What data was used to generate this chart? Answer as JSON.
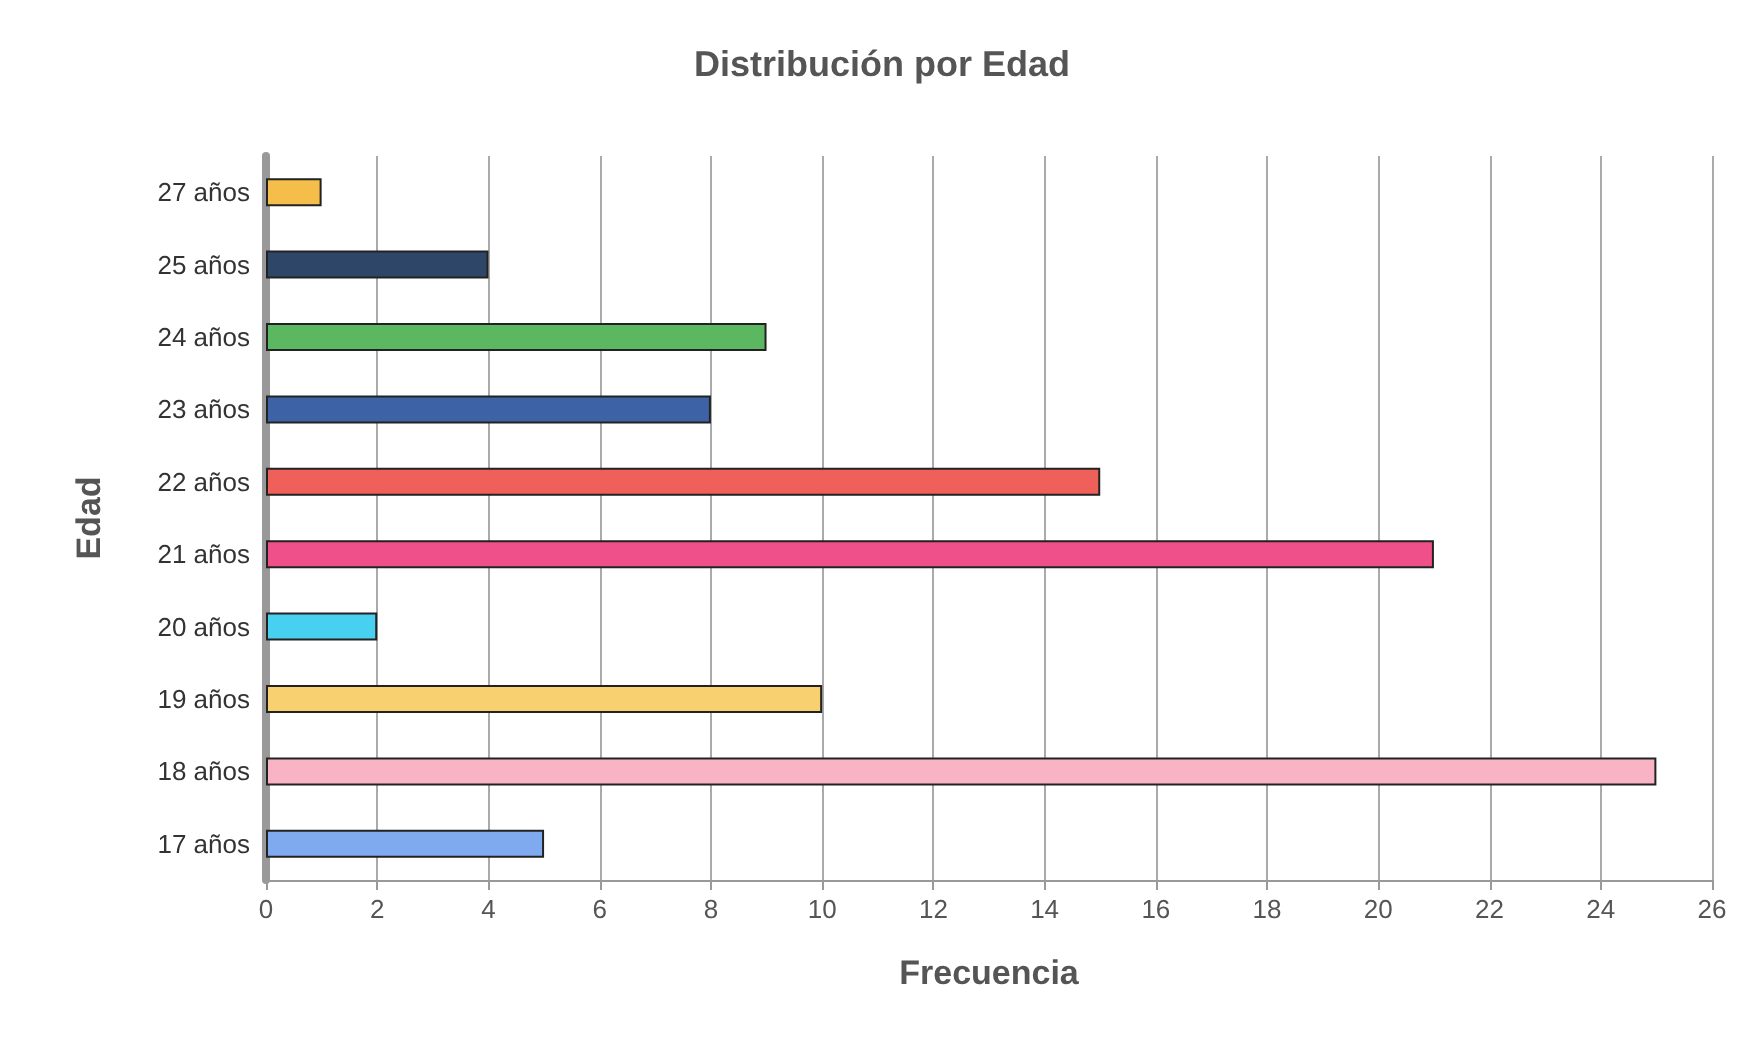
{
  "chart_data": {
    "type": "bar",
    "orientation": "horizontal",
    "title": "Distribución por Edad",
    "xlabel": "Frecuencia",
    "ylabel": "Edad",
    "categories": [
      "27 años",
      "25 años",
      "24 años",
      "23 años",
      "22 años",
      "21 años",
      "20 años",
      "19 años",
      "18 años",
      "17 años"
    ],
    "values": [
      1,
      4,
      9,
      8,
      15,
      21,
      2,
      10,
      25,
      5
    ],
    "colors": [
      "#f5bd4a",
      "#2e4668",
      "#5cb860",
      "#3e62a6",
      "#f0605a",
      "#f0508a",
      "#48d0f0",
      "#f8d070",
      "#f8b4c4",
      "#80aaf0"
    ],
    "xlim": [
      0,
      26
    ],
    "xticks": [
      0,
      2,
      4,
      6,
      8,
      10,
      12,
      14,
      16,
      18,
      20,
      22,
      24,
      26
    ],
    "grid": "x"
  }
}
